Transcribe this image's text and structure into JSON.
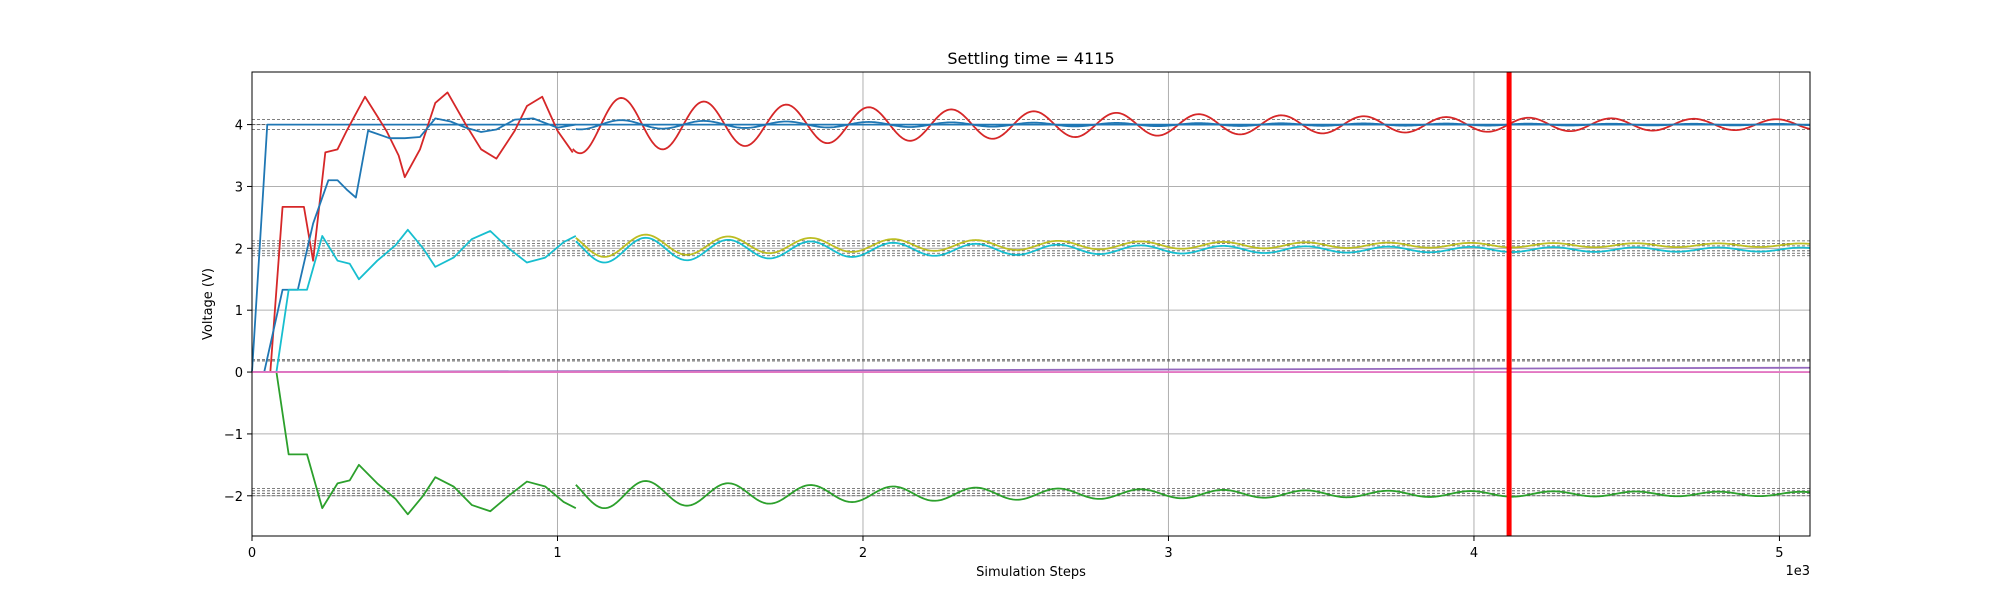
{
  "chart_data": {
    "type": "line",
    "title": "Settling time = 4115",
    "xlabel": "Simulation Steps",
    "ylabel": "Voltage (V)",
    "x_multiplier_label": "1e3",
    "xlim": [
      0,
      5.1
    ],
    "ylim": [
      -2.65,
      4.85
    ],
    "grid": true,
    "x_ticks": [
      {
        "value": 0,
        "label": "0"
      },
      {
        "value": 1,
        "label": "1"
      },
      {
        "value": 2,
        "label": "2"
      },
      {
        "value": 3,
        "label": "3"
      },
      {
        "value": 4,
        "label": "4"
      },
      {
        "value": 5,
        "label": "5"
      }
    ],
    "y_ticks": [
      {
        "value": -2,
        "label": "−2"
      },
      {
        "value": -1,
        "label": "−1"
      },
      {
        "value": 0,
        "label": "0"
      },
      {
        "value": 1,
        "label": "1"
      },
      {
        "value": 2,
        "label": "2"
      },
      {
        "value": 3,
        "label": "3"
      },
      {
        "value": 4,
        "label": "4"
      }
    ],
    "settling_marker": {
      "x": 4.115,
      "color": "#ff0000"
    },
    "tolerance_bands": [
      4.08,
      4.0,
      3.92,
      2.12,
      2.08,
      2.04,
      1.96,
      1.92,
      1.88,
      0.2,
      0.18,
      -1.88,
      -1.92,
      -1.96,
      -2.0
    ],
    "series": [
      {
        "color": "#1f77b4",
        "points": [
          [
            0,
            0
          ],
          [
            0.05,
            4.0
          ],
          [
            5.1,
            4.0
          ]
        ]
      },
      {
        "color": "#d62728",
        "points": [
          [
            0,
            0
          ],
          [
            0.06,
            0
          ],
          [
            0.1,
            2.67
          ],
          [
            0.17,
            2.67
          ],
          [
            0.2,
            1.8
          ],
          [
            0.24,
            3.55
          ],
          [
            0.28,
            3.6
          ],
          [
            0.31,
            3.9
          ],
          [
            0.37,
            4.45
          ],
          [
            0.44,
            3.9
          ],
          [
            0.48,
            3.5
          ],
          [
            0.5,
            3.15
          ],
          [
            0.55,
            3.6
          ],
          [
            0.6,
            4.35
          ],
          [
            0.64,
            4.52
          ],
          [
            0.7,
            4.0
          ],
          [
            0.75,
            3.6
          ],
          [
            0.8,
            3.45
          ],
          [
            0.86,
            3.9
          ],
          [
            0.9,
            4.3
          ],
          [
            0.95,
            4.45
          ],
          [
            1.0,
            3.9
          ],
          [
            1.05,
            3.55
          ]
        ]
      },
      {
        "color": "#1f77b4",
        "points": [
          [
            0,
            0
          ],
          [
            0.04,
            0
          ],
          [
            0.1,
            1.33
          ],
          [
            0.15,
            1.33
          ],
          [
            0.2,
            2.4
          ],
          [
            0.25,
            3.1
          ],
          [
            0.28,
            3.1
          ],
          [
            0.31,
            2.95
          ],
          [
            0.34,
            2.82
          ],
          [
            0.38,
            3.9
          ],
          [
            0.41,
            3.85
          ],
          [
            0.45,
            3.78
          ],
          [
            0.5,
            3.78
          ],
          [
            0.55,
            3.8
          ],
          [
            0.6,
            4.1
          ],
          [
            0.65,
            4.05
          ],
          [
            0.7,
            3.95
          ],
          [
            0.75,
            3.88
          ],
          [
            0.8,
            3.92
          ],
          [
            0.86,
            4.08
          ],
          [
            0.92,
            4.1
          ],
          [
            1.0,
            3.95
          ],
          [
            1.06,
            4.0
          ]
        ]
      },
      {
        "color": "#17becf",
        "points": [
          [
            0,
            0
          ],
          [
            0.08,
            0
          ],
          [
            0.12,
            1.33
          ],
          [
            0.18,
            1.33
          ],
          [
            0.23,
            2.2
          ],
          [
            0.28,
            1.8
          ],
          [
            0.32,
            1.75
          ],
          [
            0.35,
            1.5
          ],
          [
            0.41,
            1.8
          ],
          [
            0.47,
            2.05
          ],
          [
            0.51,
            2.3
          ],
          [
            0.56,
            2.0
          ],
          [
            0.6,
            1.7
          ],
          [
            0.66,
            1.85
          ],
          [
            0.72,
            2.15
          ],
          [
            0.78,
            2.28
          ],
          [
            0.84,
            2.0
          ],
          [
            0.9,
            1.77
          ],
          [
            0.96,
            1.85
          ],
          [
            1.02,
            2.1
          ],
          [
            1.06,
            2.2
          ]
        ]
      },
      {
        "color": "#2ca02c",
        "points": [
          [
            0,
            0
          ],
          [
            0.08,
            0
          ],
          [
            0.12,
            -1.33
          ],
          [
            0.18,
            -1.33
          ],
          [
            0.23,
            -2.2
          ],
          [
            0.28,
            -1.8
          ],
          [
            0.32,
            -1.75
          ],
          [
            0.35,
            -1.5
          ],
          [
            0.41,
            -1.8
          ],
          [
            0.47,
            -2.05
          ],
          [
            0.51,
            -2.3
          ],
          [
            0.56,
            -2.0
          ],
          [
            0.6,
            -1.7
          ],
          [
            0.66,
            -1.85
          ],
          [
            0.72,
            -2.15
          ],
          [
            0.78,
            -2.25
          ],
          [
            0.84,
            -2.0
          ],
          [
            0.9,
            -1.77
          ],
          [
            0.96,
            -1.85
          ],
          [
            1.02,
            -2.1
          ],
          [
            1.06,
            -2.2
          ]
        ]
      },
      {
        "color": "#9467bd",
        "points": [
          [
            0,
            0
          ],
          [
            5.1,
            0.07
          ]
        ]
      },
      {
        "color": "#e377c2",
        "points": [
          [
            0,
            0
          ],
          [
            5.1,
            0.0
          ]
        ]
      }
    ],
    "oscillations": [
      {
        "color": "#d62728",
        "center": 4.0,
        "amp0": 0.42,
        "period": 0.27,
        "phase": 0.94,
        "decay": 1.45,
        "x0": 1.05,
        "x1": 5.1
      },
      {
        "color": "#1f77b4",
        "center": 4.0,
        "amp0": 0.07,
        "period": 0.27,
        "phase": 0.94,
        "decay": 1.2,
        "x0": 1.06,
        "x1": 5.1
      },
      {
        "color": "#bcbd22",
        "center": 2.05,
        "amp0": 0.18,
        "period": 0.27,
        "phase": 1.02,
        "decay": 1.1,
        "x0": 1.06,
        "x1": 5.1
      },
      {
        "color": "#17becf",
        "center": 1.98,
        "amp0": 0.2,
        "period": 0.27,
        "phase": 1.02,
        "decay": 1.1,
        "x0": 1.06,
        "x1": 5.1
      },
      {
        "color": "#2ca02c",
        "center": -1.97,
        "amp0": 0.22,
        "period": 0.27,
        "phase": 1.02,
        "decay": 1.1,
        "x0": 1.06,
        "x1": 5.1
      }
    ]
  }
}
